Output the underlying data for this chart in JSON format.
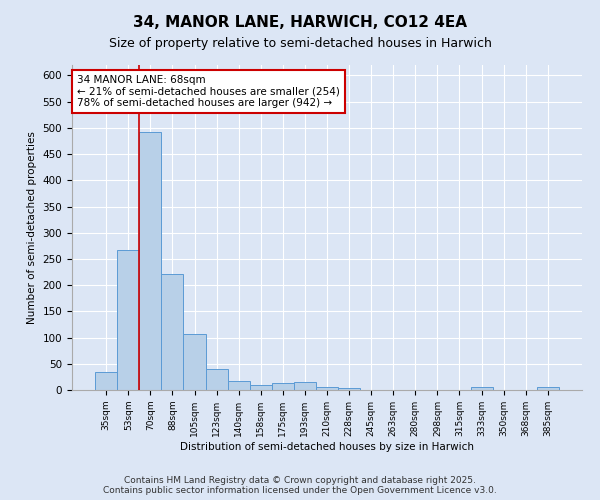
{
  "title": "34, MANOR LANE, HARWICH, CO12 4EA",
  "subtitle": "Size of property relative to semi-detached houses in Harwich",
  "xlabel": "Distribution of semi-detached houses by size in Harwich",
  "ylabel": "Number of semi-detached properties",
  "categories": [
    "35sqm",
    "53sqm",
    "70sqm",
    "88sqm",
    "105sqm",
    "123sqm",
    "140sqm",
    "158sqm",
    "175sqm",
    "193sqm",
    "210sqm",
    "228sqm",
    "245sqm",
    "263sqm",
    "280sqm",
    "298sqm",
    "315sqm",
    "333sqm",
    "350sqm",
    "368sqm",
    "385sqm"
  ],
  "values": [
    35,
    267,
    492,
    222,
    107,
    40,
    17,
    9,
    14,
    15,
    6,
    3,
    0,
    0,
    0,
    0,
    0,
    5,
    0,
    0,
    6
  ],
  "bar_color": "#b8d0e8",
  "bar_edge_color": "#5b9bd5",
  "marker_index": 2,
  "marker_color": "#cc0000",
  "annotation_line1": "34 MANOR LANE: 68sqm",
  "annotation_line2": "← 21% of semi-detached houses are smaller (254)",
  "annotation_line3": "78% of semi-detached houses are larger (942) →",
  "annotation_box_color": "#ffffff",
  "annotation_box_edge": "#cc0000",
  "ylim": [
    0,
    620
  ],
  "yticks": [
    0,
    50,
    100,
    150,
    200,
    250,
    300,
    350,
    400,
    450,
    500,
    550,
    600
  ],
  "background_color": "#dce6f5",
  "plot_bg_color": "#dce6f5",
  "grid_color": "#ffffff",
  "footer": "Contains HM Land Registry data © Crown copyright and database right 2025.\nContains public sector information licensed under the Open Government Licence v3.0.",
  "title_fontsize": 11,
  "subtitle_fontsize": 9,
  "footer_fontsize": 6.5
}
